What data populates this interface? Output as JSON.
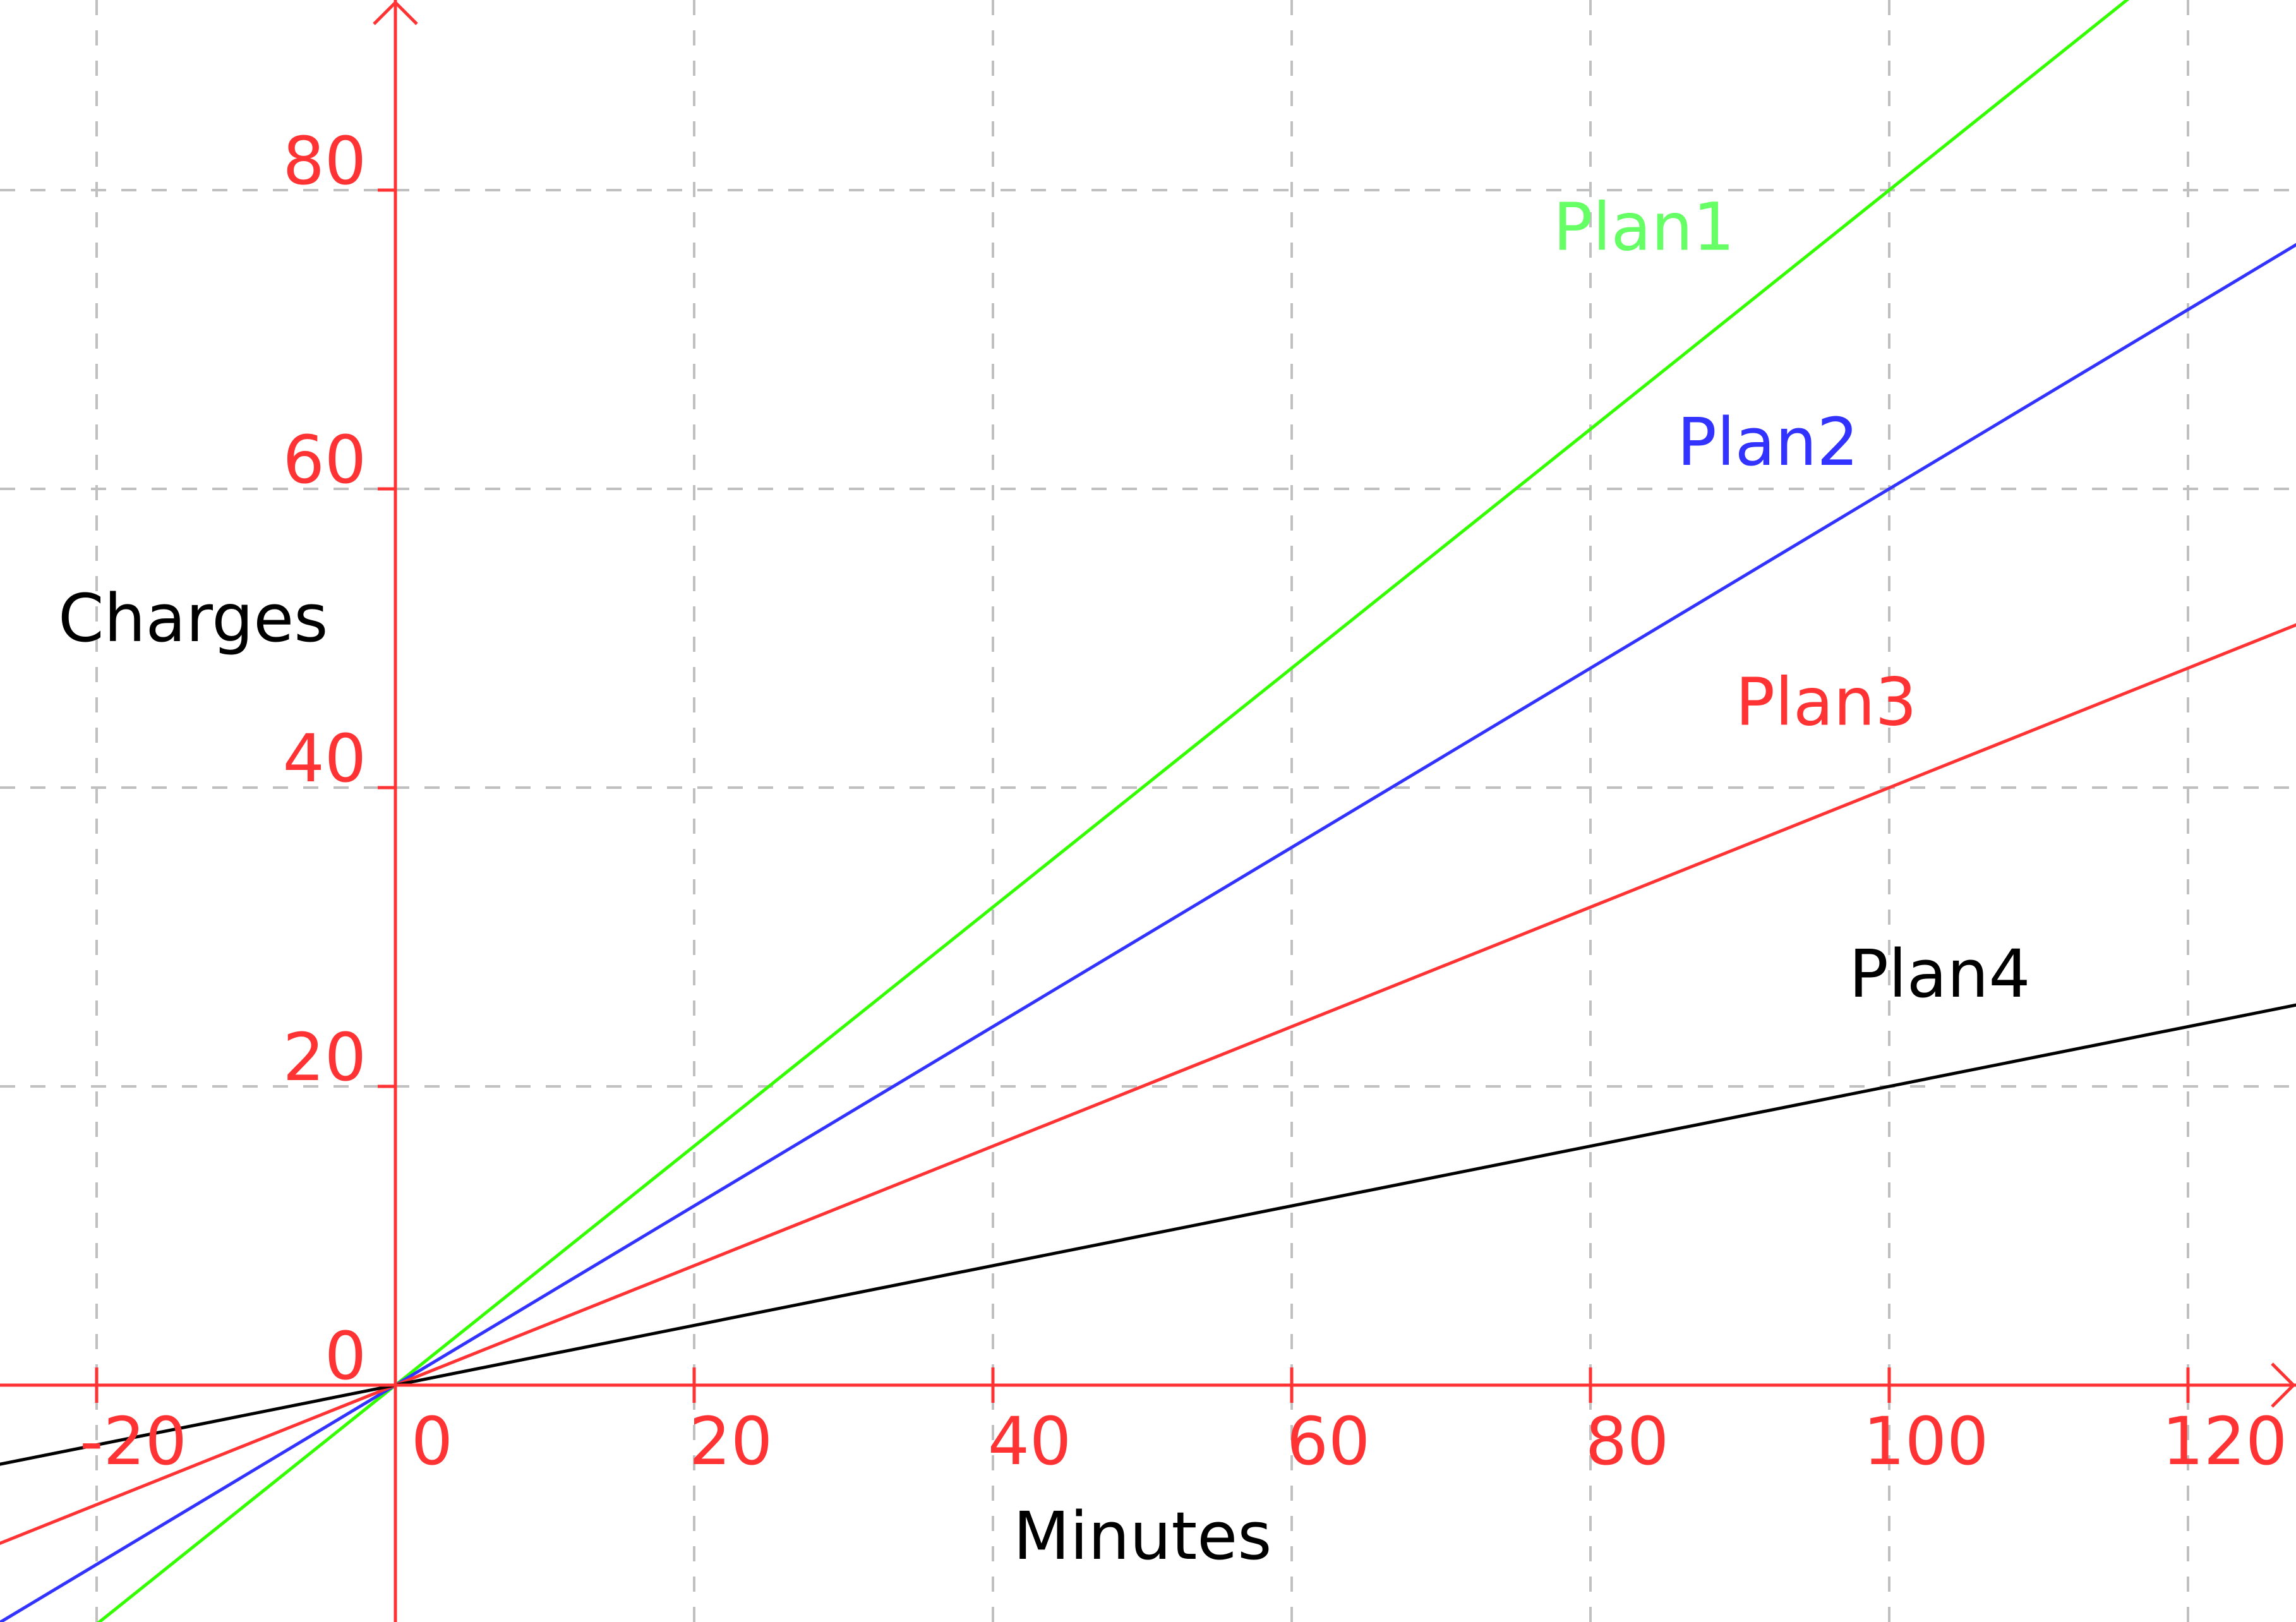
{
  "chart_data": {
    "type": "line",
    "title": "",
    "xlabel": "Minutes",
    "ylabel": "Charges",
    "xlim": [
      -26.5,
      127.3
    ],
    "ylim": [
      -15.8,
      92.7
    ],
    "x_ticks": [
      -20,
      0,
      20,
      40,
      60,
      80,
      100,
      120
    ],
    "x_tick_labels": [
      "-20",
      "0",
      "20",
      "40",
      "60",
      "80",
      "100",
      "120"
    ],
    "y_ticks": [
      0,
      20,
      40,
      60,
      80
    ],
    "y_tick_labels": [
      "0",
      "20",
      "40",
      "60",
      "80"
    ],
    "grid": true,
    "axis_color": "#ff3333",
    "grid_color": "#c0c0c0",
    "series": [
      {
        "name": "Plan1",
        "slope": 0.8,
        "intercept": 0,
        "color": "#33ff00",
        "label_color": "#66ff66"
      },
      {
        "name": "Plan2",
        "slope": 0.6,
        "intercept": 0,
        "color": "#3333ff",
        "label_color": "#3333ff"
      },
      {
        "name": "Plan3",
        "slope": 0.4,
        "intercept": 0,
        "color": "#ff3333",
        "label_color": "#ff3333"
      },
      {
        "name": "Plan4",
        "slope": 0.2,
        "intercept": 0,
        "color": "#000000",
        "label_color": "#000000"
      }
    ]
  }
}
